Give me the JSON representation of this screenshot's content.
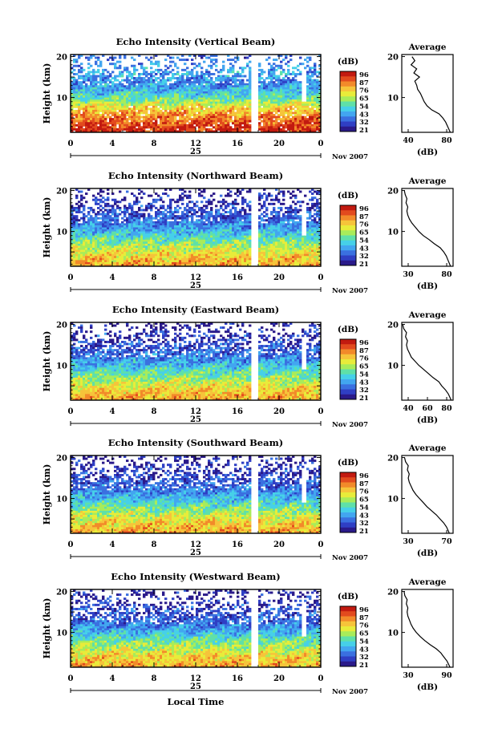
{
  "x_axis_label": "Local Time",
  "colorbar": {
    "unit": "(dB)",
    "ticks": [
      "96",
      "87",
      "76",
      "65",
      "54",
      "43",
      "32",
      "21"
    ],
    "colors": [
      "#2a1a8a",
      "#2f3fc4",
      "#3a70e0",
      "#42a6f0",
      "#46d0e8",
      "#5fe0a8",
      "#a8ec5a",
      "#e8ec3a",
      "#f6c43a",
      "#f28a2a",
      "#e24a1e",
      "#c21a10"
    ]
  },
  "chart_data": [
    {
      "type": "heatmap",
      "title": "Echo Intensity (Vertical Beam)",
      "ylabel": "Height (km)",
      "xticks": [
        "0",
        "4",
        "8",
        "12",
        "16",
        "20",
        "0"
      ],
      "date_label": "25",
      "date_right": "Nov 2007",
      "ylim": [
        1.5,
        20.5
      ],
      "yticks": [
        "20",
        "10"
      ],
      "gap_hour": 17.5,
      "white_top": 13,
      "levels": [
        [
          2,
          92
        ],
        [
          4,
          86
        ],
        [
          6,
          78
        ],
        [
          8,
          68
        ],
        [
          10,
          54
        ],
        [
          12,
          44
        ],
        [
          14,
          40
        ],
        [
          16,
          44
        ],
        [
          18,
          40
        ],
        [
          20,
          36
        ]
      ],
      "profile": {
        "title": "Average",
        "xlabel": "(dB)",
        "xticks": [
          "40",
          "80"
        ],
        "xlim": [
          30,
          85
        ],
        "heights": [
          1.5,
          3,
          4,
          5,
          6,
          7,
          8,
          9,
          10,
          11,
          12,
          13,
          14,
          15,
          16,
          17,
          18,
          19,
          20
        ],
        "values": [
          82,
          79,
          77,
          74,
          70,
          62,
          57,
          54,
          52,
          50,
          47,
          46,
          44,
          49,
          43,
          46,
          40,
          44,
          41
        ]
      }
    },
    {
      "type": "heatmap",
      "title": "Echo Intensity (Northward Beam)",
      "ylabel": "Height (km)",
      "xticks": [
        "0",
        "4",
        "8",
        "12",
        "16",
        "20",
        "0"
      ],
      "date_label": "25",
      "date_right": "Nov 2007",
      "ylim": [
        1.5,
        20.5
      ],
      "yticks": [
        "20",
        "10"
      ],
      "gap_hour": 17.5,
      "white_top": 12,
      "levels": [
        [
          2,
          76
        ],
        [
          4,
          72
        ],
        [
          6,
          64
        ],
        [
          8,
          56
        ],
        [
          10,
          46
        ],
        [
          12,
          38
        ],
        [
          14,
          34
        ],
        [
          16,
          30
        ],
        [
          18,
          28
        ],
        [
          20,
          24
        ]
      ],
      "profile": {
        "title": "Average",
        "xlabel": "(dB)",
        "xticks": [
          "30",
          "80"
        ],
        "xlim": [
          25,
          85
        ],
        "heights": [
          1.5,
          3,
          4,
          5,
          6,
          7,
          8,
          9,
          10,
          11,
          12,
          13,
          14,
          15,
          16,
          17,
          18,
          19,
          20
        ],
        "values": [
          82,
          79,
          77,
          74,
          70,
          63,
          57,
          50,
          45,
          41,
          37,
          34,
          32,
          31,
          32,
          30,
          31,
          29,
          28
        ]
      }
    },
    {
      "type": "heatmap",
      "title": "Echo Intensity (Eastward Beam)",
      "ylabel": "Height (km)",
      "xticks": [
        "0",
        "4",
        "8",
        "12",
        "16",
        "20",
        "0"
      ],
      "date_label": "25",
      "date_right": "Nov 2007",
      "ylim": [
        1.5,
        20.5
      ],
      "yticks": [
        "20",
        "10"
      ],
      "gap_hour": 17.5,
      "white_top": 12,
      "levels": [
        [
          2,
          76
        ],
        [
          4,
          72
        ],
        [
          6,
          64
        ],
        [
          8,
          56
        ],
        [
          10,
          46
        ],
        [
          12,
          38
        ],
        [
          14,
          34
        ],
        [
          16,
          30
        ],
        [
          18,
          28
        ],
        [
          20,
          24
        ]
      ],
      "profile": {
        "title": "Average",
        "xlabel": "(dB)",
        "xticks": [
          "40",
          "60",
          "80"
        ],
        "xlim": [
          28,
          82
        ],
        "heights": [
          1.5,
          3,
          4,
          5,
          6,
          7,
          8,
          9,
          10,
          11,
          12,
          13,
          14,
          15,
          16,
          17,
          18,
          19,
          20
        ],
        "values": [
          80,
          77,
          74,
          70,
          67,
          61,
          56,
          51,
          46,
          42,
          38,
          36,
          34,
          33,
          34,
          32,
          33,
          30,
          29
        ]
      }
    },
    {
      "type": "heatmap",
      "title": "Echo Intensity (Southward Beam)",
      "ylabel": "Height (km)",
      "xticks": [
        "0",
        "4",
        "8",
        "12",
        "16",
        "20",
        "0"
      ],
      "date_label": "25",
      "date_right": "Nov 2007",
      "ylim": [
        1.5,
        20.5
      ],
      "yticks": [
        "20",
        "10"
      ],
      "gap_hour": 17.5,
      "white_top": 12,
      "levels": [
        [
          2,
          76
        ],
        [
          4,
          72
        ],
        [
          6,
          64
        ],
        [
          8,
          56
        ],
        [
          10,
          46
        ],
        [
          12,
          38
        ],
        [
          14,
          34
        ],
        [
          16,
          30
        ],
        [
          18,
          28
        ],
        [
          20,
          24
        ]
      ],
      "profile": {
        "title": "Average",
        "xlabel": "(dB)",
        "xticks": [
          "30",
          "70"
        ],
        "xlim": [
          25,
          80
        ],
        "heights": [
          1.5,
          3,
          4,
          5,
          6,
          7,
          8,
          9,
          10,
          11,
          12,
          13,
          14,
          15,
          16,
          17,
          18,
          19,
          20
        ],
        "values": [
          76,
          73,
          70,
          66,
          62,
          57,
          52,
          48,
          44,
          40,
          37,
          35,
          33,
          32,
          33,
          31,
          32,
          29,
          28
        ]
      }
    },
    {
      "type": "heatmap",
      "title": "Echo Intensity (Westward Beam)",
      "ylabel": "Height (km)",
      "xticks": [
        "0",
        "4",
        "8",
        "12",
        "16",
        "20",
        "0"
      ],
      "date_label": "25",
      "date_right": "Nov 2007",
      "ylim": [
        1.5,
        20.5
      ],
      "yticks": [
        "20",
        "10"
      ],
      "gap_hour": 17.5,
      "white_top": 12,
      "levels": [
        [
          2,
          76
        ],
        [
          4,
          72
        ],
        [
          6,
          64
        ],
        [
          8,
          56
        ],
        [
          10,
          46
        ],
        [
          12,
          38
        ],
        [
          14,
          34
        ],
        [
          16,
          30
        ],
        [
          18,
          28
        ],
        [
          20,
          24
        ]
      ],
      "profile": {
        "title": "Average",
        "xlabel": "(dB)",
        "xticks": [
          "30",
          "90"
        ],
        "xlim": [
          25,
          92
        ],
        "heights": [
          1.5,
          3,
          4,
          5,
          6,
          7,
          8,
          9,
          10,
          11,
          12,
          13,
          14,
          15,
          16,
          17,
          18,
          19,
          20
        ],
        "values": [
          88,
          84,
          80,
          76,
          70,
          62,
          55,
          49,
          44,
          40,
          37,
          35,
          33,
          32,
          33,
          31,
          32,
          29,
          28
        ]
      }
    }
  ]
}
